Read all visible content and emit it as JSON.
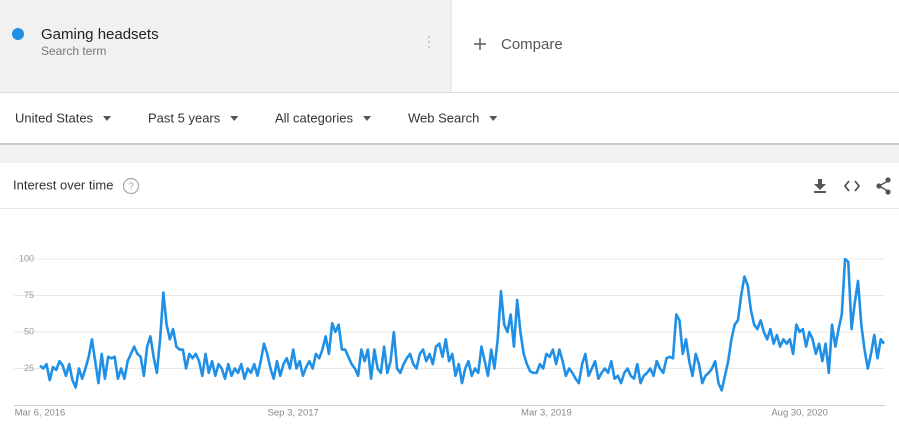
{
  "header": {
    "subtitle": "Search term",
    "compare": "Compare"
  },
  "filters": [
    "United States",
    "Past 5 years",
    "All categories",
    "Web Search"
  ],
  "card": {
    "title": "Interest over time"
  },
  "chart_data": {
    "type": "line",
    "categories": [
      "Mar 6, 2016",
      null,
      null,
      null,
      null,
      null,
      null,
      null,
      null,
      null,
      null,
      null,
      null,
      null,
      null,
      null,
      null,
      null,
      null,
      null,
      null,
      null,
      null,
      null,
      null,
      null,
      null,
      null,
      null,
      null,
      null,
      null,
      null,
      null,
      null,
      null,
      null,
      null,
      null,
      null,
      null,
      null,
      null,
      null,
      null,
      null,
      null,
      null,
      null,
      null,
      null,
      null,
      null,
      null,
      null,
      null,
      null,
      null,
      null,
      null,
      null,
      null,
      null,
      null,
      null,
      null,
      null,
      null,
      null,
      null,
      null,
      null,
      null,
      null,
      null,
      null,
      null,
      null,
      "Sep 3, 2017",
      null,
      null,
      null,
      null,
      null,
      null,
      null,
      null,
      null,
      null,
      null,
      null,
      null,
      null,
      null,
      null,
      null,
      null,
      null,
      null,
      null,
      null,
      null,
      null,
      null,
      null,
      null,
      null,
      null,
      null,
      null,
      null,
      null,
      null,
      null,
      null,
      null,
      null,
      null,
      null,
      null,
      null,
      null,
      null,
      null,
      null,
      null,
      null,
      null,
      null,
      null,
      null,
      null,
      null,
      null,
      null,
      null,
      null,
      null,
      null,
      null,
      null,
      null,
      null,
      null,
      null,
      null,
      null,
      null,
      null,
      null,
      null,
      null,
      null,
      null,
      null,
      null,
      "Mar 3, 2019",
      null,
      null,
      null,
      null,
      null,
      null,
      null,
      null,
      null,
      null,
      null,
      null,
      null,
      null,
      null,
      null,
      null,
      null,
      null,
      null,
      null,
      null,
      null,
      null,
      null,
      null,
      null,
      null,
      null,
      null,
      null,
      null,
      null,
      null,
      null,
      null,
      null,
      null,
      null,
      null,
      null,
      null,
      null,
      null,
      null,
      null,
      null,
      null,
      null,
      null,
      null,
      null,
      null,
      null,
      null,
      null,
      null,
      null,
      null,
      null,
      null,
      null,
      null,
      null,
      null,
      null,
      null,
      null,
      null,
      null,
      null,
      null,
      null,
      null,
      null,
      null,
      null,
      "Aug 30, 2020",
      null,
      null,
      null,
      null,
      null,
      null,
      null,
      null,
      null,
      null,
      null,
      null,
      null,
      null,
      null,
      null,
      null,
      null,
      null,
      null,
      null,
      null,
      null,
      null,
      null,
      null
    ],
    "series": [
      {
        "name": "Gaming headsets",
        "color": "#2090e6",
        "values": [
          27,
          25,
          28,
          17,
          26,
          24,
          30,
          27,
          20,
          28,
          17,
          12,
          25,
          18,
          25,
          33,
          45,
          30,
          15,
          35,
          18,
          33,
          32,
          33,
          18,
          25,
          18,
          30,
          35,
          40,
          35,
          33,
          20,
          40,
          47,
          33,
          22,
          45,
          77,
          55,
          45,
          52,
          40,
          38,
          38,
          25,
          35,
          32,
          35,
          30,
          20,
          35,
          22,
          30,
          20,
          28,
          25,
          18,
          28,
          20,
          25,
          22,
          28,
          18,
          25,
          22,
          28,
          20,
          30,
          42,
          35,
          25,
          18,
          30,
          20,
          28,
          32,
          25,
          38,
          25,
          30,
          20,
          26,
          30,
          25,
          35,
          32,
          38,
          47,
          35,
          56,
          50,
          55,
          38,
          38,
          33,
          28,
          25,
          20,
          38,
          30,
          38,
          18,
          38,
          25,
          22,
          40,
          22,
          30,
          50,
          25,
          22,
          28,
          32,
          35,
          28,
          25,
          35,
          38,
          30,
          35,
          28,
          40,
          42,
          33,
          45,
          30,
          35,
          20,
          28,
          15,
          25,
          30,
          20,
          25,
          22,
          40,
          30,
          20,
          38,
          25,
          45,
          78,
          55,
          50,
          62,
          40,
          72,
          50,
          35,
          28,
          23,
          22,
          22,
          28,
          25,
          35,
          33,
          38,
          28,
          38,
          30,
          20,
          25,
          22,
          18,
          15,
          28,
          35,
          20,
          25,
          30,
          18,
          22,
          25,
          22,
          30,
          18,
          20,
          15,
          22,
          25,
          20,
          18,
          28,
          15,
          20,
          22,
          25,
          20,
          30,
          25,
          22,
          32,
          33,
          32,
          62,
          58,
          35,
          45,
          30,
          20,
          35,
          28,
          15,
          20,
          22,
          25,
          30,
          15,
          10,
          20,
          30,
          45,
          55,
          58,
          75,
          88,
          82,
          65,
          55,
          52,
          58,
          50,
          45,
          52,
          42,
          48,
          40,
          45,
          42,
          45,
          35,
          55,
          50,
          52,
          40,
          50,
          45,
          35,
          42,
          30,
          42,
          22,
          55,
          40,
          52,
          62,
          100,
          98,
          52,
          70,
          85,
          55,
          38,
          25,
          35,
          48,
          32,
          45,
          42
        ]
      }
    ],
    "ylim": [
      0,
      100
    ],
    "yticks": [
      25,
      50,
      75,
      100
    ],
    "grid": true
  }
}
